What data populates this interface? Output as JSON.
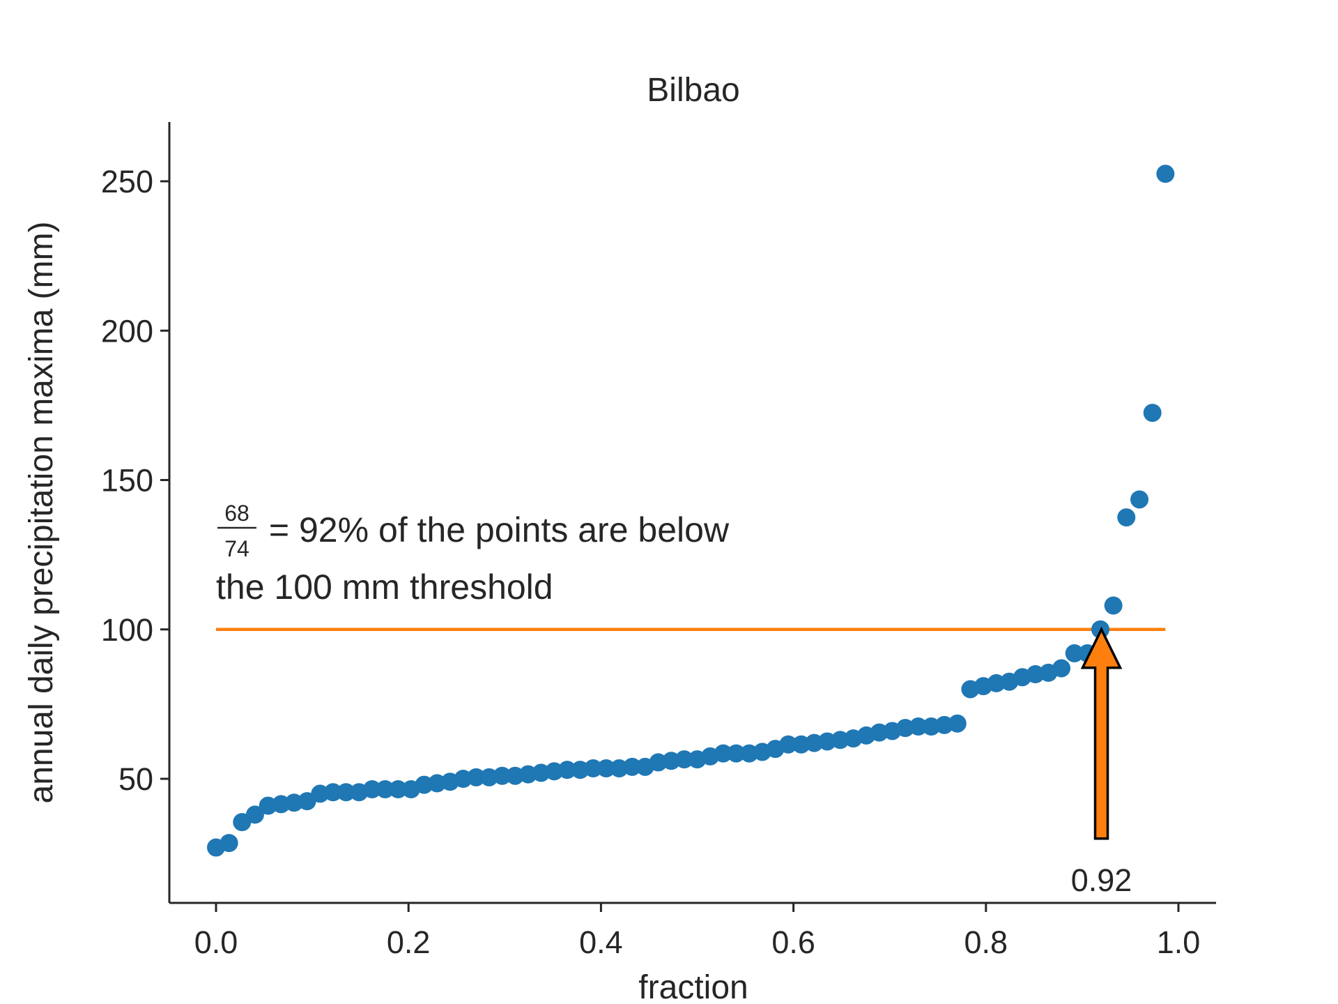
{
  "chart_data": {
    "type": "scatter",
    "title": "Bilbao",
    "xlabel": "fraction",
    "ylabel": "annual daily precipitation maxima (mm)",
    "xlim": [
      -0.05,
      1.035
    ],
    "ylim": [
      10,
      270
    ],
    "xticks": [
      0.0,
      0.2,
      0.4,
      0.6,
      0.8,
      1.0
    ],
    "xtick_labels": [
      "0.0",
      "0.2",
      "0.4",
      "0.6",
      "0.8",
      "1.0"
    ],
    "yticks": [
      50,
      100,
      150,
      200,
      250
    ],
    "ytick_labels": [
      "50",
      "100",
      "150",
      "200",
      "250"
    ],
    "grid": false,
    "series": [
      {
        "color": "#1f77b4",
        "x": [
          0.0,
          0.0135,
          0.027,
          0.0405,
          0.0541,
          0.0676,
          0.0811,
          0.0946,
          0.1081,
          0.1216,
          0.1351,
          0.1486,
          0.1622,
          0.1757,
          0.1892,
          0.2027,
          0.2162,
          0.2297,
          0.2432,
          0.2568,
          0.2703,
          0.2838,
          0.2973,
          0.3108,
          0.3243,
          0.3378,
          0.3514,
          0.3649,
          0.3784,
          0.3919,
          0.4054,
          0.4189,
          0.4324,
          0.4459,
          0.4595,
          0.473,
          0.4865,
          0.5,
          0.5135,
          0.527,
          0.5405,
          0.5541,
          0.5676,
          0.5811,
          0.5946,
          0.6081,
          0.6216,
          0.6351,
          0.6486,
          0.6622,
          0.6757,
          0.6892,
          0.7027,
          0.7162,
          0.7297,
          0.7432,
          0.7568,
          0.7703,
          0.7838,
          0.7973,
          0.8108,
          0.8243,
          0.8378,
          0.8514,
          0.8649,
          0.8784,
          0.8919,
          0.9054,
          0.9189,
          0.9324,
          0.9459,
          0.9595,
          0.973,
          0.9865
        ],
        "y": [
          27,
          28.5,
          35.5,
          38,
          41,
          41.5,
          42,
          42.5,
          45,
          45.5,
          45.5,
          45.5,
          46.5,
          46.5,
          46.5,
          46.5,
          48,
          48.5,
          49,
          50,
          50.5,
          50.5,
          51,
          51,
          51.5,
          52,
          52.5,
          53,
          53,
          53.5,
          53.5,
          53.5,
          54,
          54,
          55.5,
          56,
          56.5,
          56.5,
          57.5,
          58.5,
          58.5,
          58.5,
          59,
          60,
          61.5,
          61.5,
          62,
          62.5,
          63,
          63.5,
          64.5,
          65.5,
          66,
          67,
          67.5,
          67.5,
          68,
          68.5,
          80,
          81,
          82,
          82.5,
          84,
          85,
          85.5,
          87,
          92,
          92,
          100,
          108,
          137.5,
          143.5,
          172.5,
          252.5
        ]
      },
      {
        "type": "line",
        "color": "#ff7f0e",
        "x": [
          0.0,
          0.9865
        ],
        "y": [
          100,
          100
        ]
      }
    ],
    "annotations": {
      "fraction_numerator": "68",
      "fraction_denominator": "74",
      "line1_text": " = 92% of the points are below",
      "line2_text": "the 100 mm threshold",
      "arrow_label": "0.92",
      "arrow_x": 0.92,
      "arrow_tip_y": 100,
      "arrow_tail_y": 30,
      "arrow_color": "#ff7f0e"
    }
  }
}
